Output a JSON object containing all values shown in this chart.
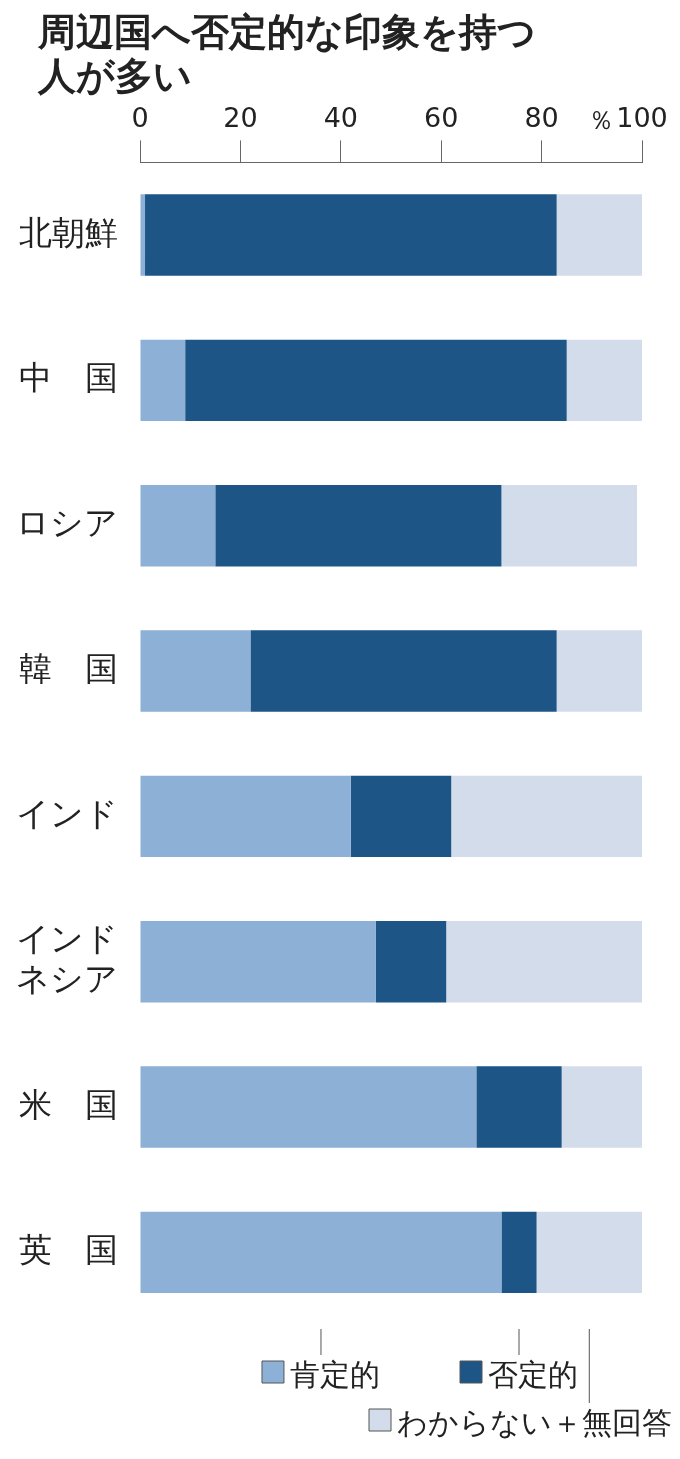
{
  "chart_data": {
    "type": "bar",
    "title": "周辺国へ否定的な印象を持つ人が多い",
    "orientation": "horizontal",
    "stacked": true,
    "xlabel": "％",
    "categories": [
      "北朝鮮",
      "中　国",
      "ロシア",
      "韓　国",
      "インド",
      "インドネシア",
      "米　国",
      "英　国"
    ],
    "series": [
      {
        "name": "肯定的",
        "color": "#8db0d6",
        "values": [
          1,
          9,
          15,
          22,
          42,
          47,
          67,
          72
        ]
      },
      {
        "name": "否定的",
        "color": "#1d5587",
        "values": [
          82,
          76,
          57,
          61,
          20,
          14,
          17,
          7
        ]
      },
      {
        "name": "わからない＋無回答",
        "color": "#d3dcea",
        "values": [
          17,
          15,
          27,
          17,
          38,
          39,
          16,
          21
        ]
      }
    ],
    "xlim": [
      0,
      100
    ],
    "xticks": [
      0,
      20,
      40,
      60,
      80,
      100
    ],
    "legend": "bottom"
  }
}
